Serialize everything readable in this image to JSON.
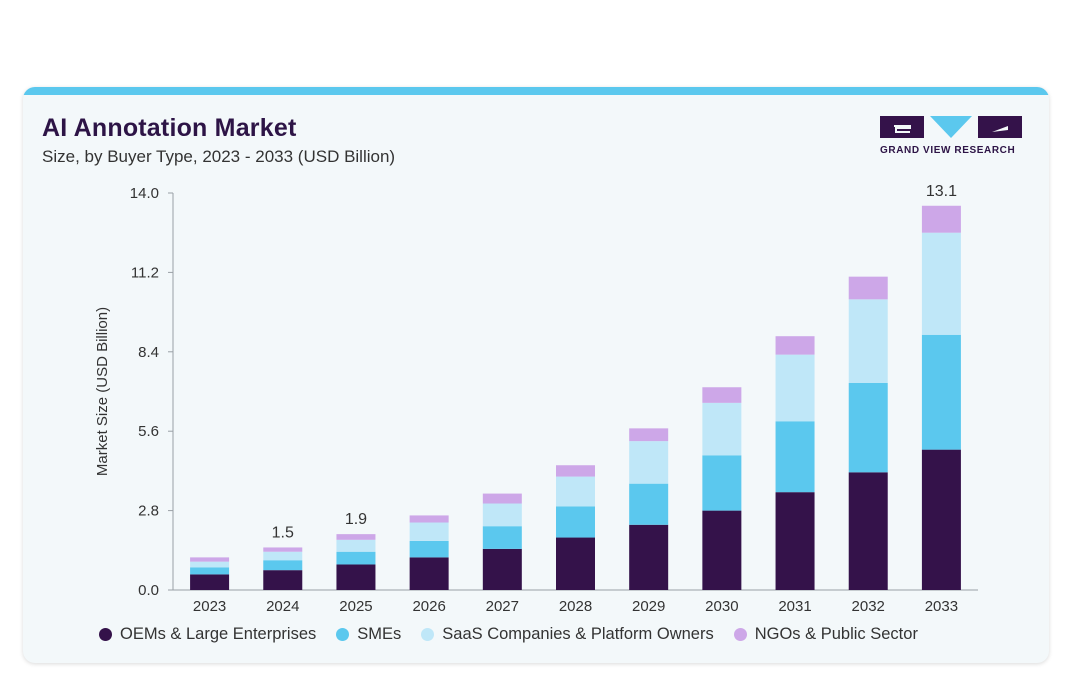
{
  "title": "AI Annotation Market",
  "subtitle": "Size, by Buyer Type, 2023 - 2033 (USD Billion)",
  "logo_text": "GRAND VIEW RESEARCH",
  "colors": {
    "accent_bar": "#5bc8ee",
    "logo": "#2d1446"
  },
  "chart_data": {
    "type": "bar",
    "stacked": true,
    "ylabel": "Market Size (USD Billion)",
    "xlabel": "",
    "ylim": [
      0,
      14
    ],
    "yticks": [
      "0.0",
      "2.8",
      "5.6",
      "8.4",
      "11.2",
      "14.0"
    ],
    "ytick_values": [
      0,
      2.8,
      5.6,
      8.4,
      11.2,
      14.0
    ],
    "grid": false,
    "legend_position": "bottom",
    "categories": [
      "2023",
      "2024",
      "2025",
      "2026",
      "2027",
      "2028",
      "2029",
      "2030",
      "2031",
      "2032",
      "2033"
    ],
    "series": [
      {
        "name": "OEMs & Large Enterprises",
        "color": "#34124a",
        "values": [
          0.55,
          0.7,
          0.9,
          1.15,
          1.45,
          1.85,
          2.3,
          2.8,
          3.45,
          4.15,
          4.95
        ]
      },
      {
        "name": "SMEs",
        "color": "#5bc8ee",
        "values": [
          0.25,
          0.35,
          0.45,
          0.58,
          0.8,
          1.1,
          1.45,
          1.95,
          2.5,
          3.15,
          4.05
        ]
      },
      {
        "name": "SaaS Companies & Platform Owners",
        "color": "#bfe7f8",
        "values": [
          0.2,
          0.3,
          0.42,
          0.65,
          0.8,
          1.05,
          1.5,
          1.85,
          2.35,
          2.95,
          3.6
        ]
      },
      {
        "name": "NGOs & Public Sector",
        "color": "#cda7e8",
        "values": [
          0.15,
          0.15,
          0.2,
          0.25,
          0.35,
          0.4,
          0.45,
          0.55,
          0.65,
          0.8,
          0.95
        ]
      }
    ],
    "data_labels": [
      {
        "category": "2024",
        "text": "1.5"
      },
      {
        "category": "2025",
        "text": "1.9"
      },
      {
        "category": "2033",
        "text": "13.1"
      }
    ]
  }
}
